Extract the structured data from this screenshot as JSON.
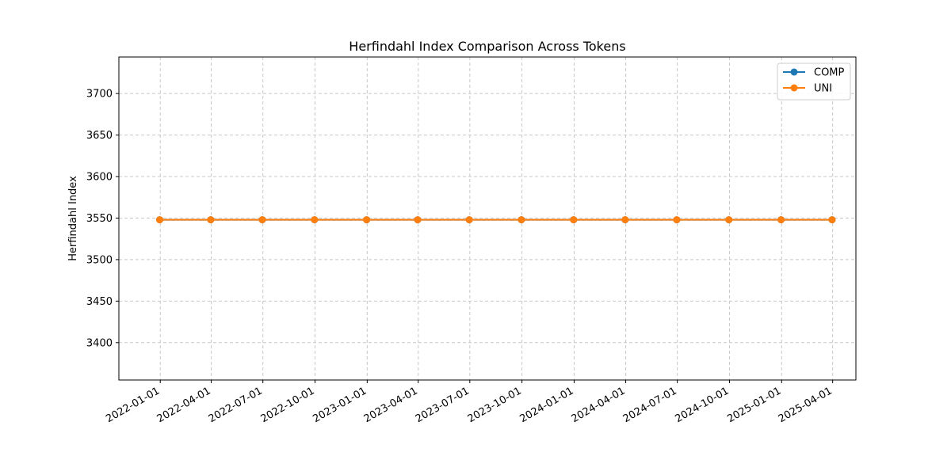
{
  "chart_data": {
    "type": "line",
    "title": "Herfindahl Index Comparison Across Tokens",
    "xlabel": "",
    "ylabel": "Herfindahl Index",
    "x": [
      "2021-12-31",
      "2022-03-31",
      "2022-06-30",
      "2022-09-30",
      "2022-12-31",
      "2023-03-31",
      "2023-06-30",
      "2023-09-30",
      "2023-12-31",
      "2024-03-31",
      "2024-06-30",
      "2024-09-30",
      "2024-12-31",
      "2025-03-31"
    ],
    "x_ticks": [
      "2022-01-01",
      "2022-04-01",
      "2022-07-01",
      "2022-10-01",
      "2023-01-01",
      "2023-04-01",
      "2023-07-01",
      "2023-10-01",
      "2024-01-01",
      "2024-04-01",
      "2024-07-01",
      "2024-10-01",
      "2025-01-01",
      "2025-04-01"
    ],
    "xlim": [
      "2021-10-20",
      "2025-05-12"
    ],
    "y_ticks": [
      3400,
      3450,
      3500,
      3550,
      3600,
      3650,
      3700
    ],
    "ylim": [
      3355,
      3744
    ],
    "grid": true,
    "legend": "top-right",
    "series": [
      {
        "name": "COMP",
        "color": "#1f77b4",
        "values": [
          3548,
          3548,
          3548,
          3548,
          3548,
          3548,
          3548,
          3548,
          3548,
          3548,
          3548,
          3548,
          3548,
          3548
        ]
      },
      {
        "name": "UNI",
        "color": "#ff7f0e",
        "values": [
          3548,
          3548,
          3548,
          3548,
          3548,
          3548,
          3548,
          3548,
          3548,
          3548,
          3548,
          3548,
          3548,
          3548
        ]
      }
    ]
  }
}
